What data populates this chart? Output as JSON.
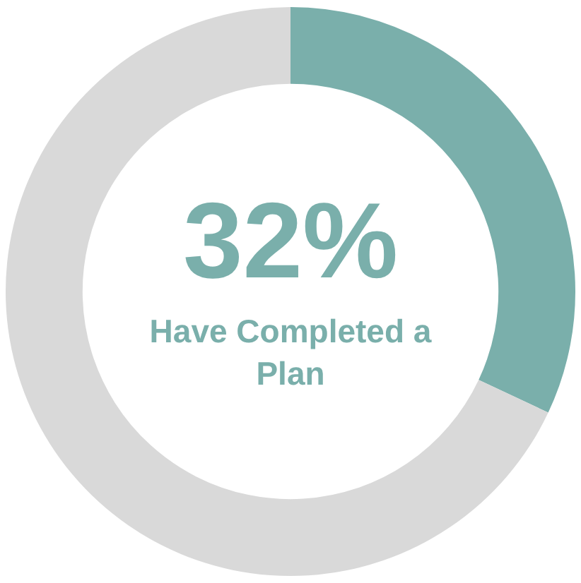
{
  "chart_data": {
    "type": "donut",
    "categories": [
      null,
      null
    ],
    "values": [
      32,
      68
    ],
    "colors": [
      "#7aafab",
      "#d9d9d9"
    ],
    "value_labels": [
      "32%",
      null
    ],
    "annotations": [
      "Have Completed a Plan"
    ],
    "legend": false
  }
}
